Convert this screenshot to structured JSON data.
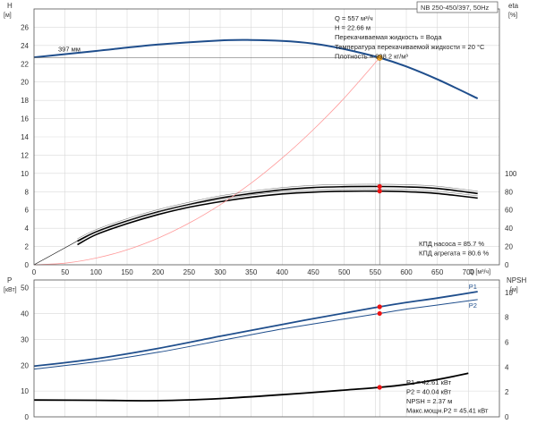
{
  "header": {
    "model": "NB 250-450/397, 50Hz"
  },
  "chart_data": [
    {
      "type": "line",
      "panel": "head_and_efficiency",
      "xlabel": "Q [м³/ч]",
      "xlim": [
        0,
        750
      ],
      "xticks": [
        0,
        50,
        100,
        150,
        200,
        250,
        300,
        350,
        400,
        450,
        500,
        550,
        600,
        650,
        700
      ],
      "y_left": {
        "label": "H",
        "unit": "[м]",
        "lim": [
          0,
          28
        ],
        "ticks": [
          0,
          2,
          4,
          6,
          8,
          10,
          12,
          14,
          16,
          18,
          20,
          22,
          24,
          26
        ]
      },
      "y_right": {
        "label": "eta",
        "unit": "[%]",
        "lim": [
          0,
          100
        ],
        "ticks": [
          0,
          20,
          40,
          60,
          80,
          100
        ]
      },
      "grid": true,
      "impeller_label": "397 мм",
      "duty_point": {
        "Q": 557,
        "H": 22.66
      },
      "info_lines": [
        "Q = 557 м³/ч",
        "H = 22.66 м",
        "Перекачиваемая жидкость = Вода",
        "Температура перекачиваемой жидкости = 20 °C",
        "Плотность = 998.2 кг/м³"
      ],
      "efficiency_lines": [
        "КПД насоса = 85.7 %",
        "КПД агрегата = 80.6 %"
      ],
      "series": [
        {
          "axis": "left",
          "color": "#1f4e8c",
          "x": [
            0,
            100,
            200,
            300,
            350,
            400,
            450,
            500,
            557,
            600,
            650,
            715
          ],
          "y": [
            22.7,
            23.4,
            24.1,
            24.55,
            24.6,
            24.5,
            24.2,
            23.6,
            22.66,
            21.7,
            20.3,
            18.2
          ]
        },
        {
          "axis": "right",
          "color": "#000000",
          "x": [
            70,
            100,
            150,
            200,
            250,
            300,
            350,
            400,
            450,
            500,
            557,
            600,
            650,
            715
          ],
          "y": [
            26,
            36,
            48,
            58,
            66,
            73,
            78,
            82,
            84.5,
            85.5,
            85.7,
            85.2,
            83.5,
            78
          ]
        },
        {
          "axis": "right",
          "color": "#000000",
          "x": [
            70,
            100,
            150,
            200,
            250,
            300,
            350,
            400,
            450,
            500,
            557,
            600,
            650,
            715
          ],
          "y": [
            22,
            33,
            45,
            55,
            63,
            69,
            74,
            77.5,
            79.5,
            80.5,
            80.6,
            80,
            78,
            73
          ]
        },
        {
          "axis": "left",
          "color": "#ff9999",
          "x": [
            0,
            50,
            100,
            150,
            200,
            250,
            300,
            350,
            400,
            450,
            500,
            557
          ],
          "y": [
            0,
            0.18,
            0.73,
            1.64,
            2.92,
            4.56,
            6.57,
            8.94,
            11.68,
            14.78,
            18.25,
            22.66
          ]
        }
      ]
    },
    {
      "type": "line",
      "panel": "power_and_npsh",
      "xlim": [
        0,
        750
      ],
      "y_left": {
        "label": "P",
        "unit": "[кВт]",
        "lim": [
          0,
          53
        ],
        "ticks": [
          0,
          10,
          20,
          30,
          40,
          50
        ]
      },
      "y_right": {
        "label": "NPSH",
        "unit": "[м]",
        "lim": [
          0,
          11
        ],
        "ticks": [
          0,
          2,
          4,
          6,
          8,
          10
        ]
      },
      "grid": true,
      "info_lines": [
        "P1 = 42.61 кВт",
        "P2 = 40.04 кВт",
        "NPSH = 2.37 м",
        "Макс.мощн.P2 = 45.41 кВт"
      ],
      "series": [
        {
          "name": "P1",
          "axis": "left",
          "color": "#1f4e8c",
          "x": [
            0,
            100,
            200,
            300,
            400,
            500,
            557,
            600,
            650,
            715
          ],
          "y": [
            19.6,
            22.5,
            26.5,
            31.2,
            35.8,
            40.2,
            42.61,
            44.3,
            46,
            48.5
          ]
        },
        {
          "name": "P2",
          "axis": "left",
          "color": "#1f4e8c",
          "x": [
            0,
            100,
            200,
            300,
            400,
            500,
            557,
            600,
            650,
            715
          ],
          "y": [
            18.5,
            21.3,
            25,
            29.5,
            34,
            37.9,
            40.04,
            41.7,
            43.3,
            45.4
          ]
        },
        {
          "axis": "right",
          "color": "#000000",
          "x": [
            0,
            100,
            200,
            300,
            400,
            500,
            557,
            600,
            650,
            700
          ],
          "y": [
            1.35,
            1.33,
            1.3,
            1.47,
            1.78,
            2.15,
            2.37,
            2.6,
            3.0,
            3.5
          ]
        }
      ]
    }
  ]
}
